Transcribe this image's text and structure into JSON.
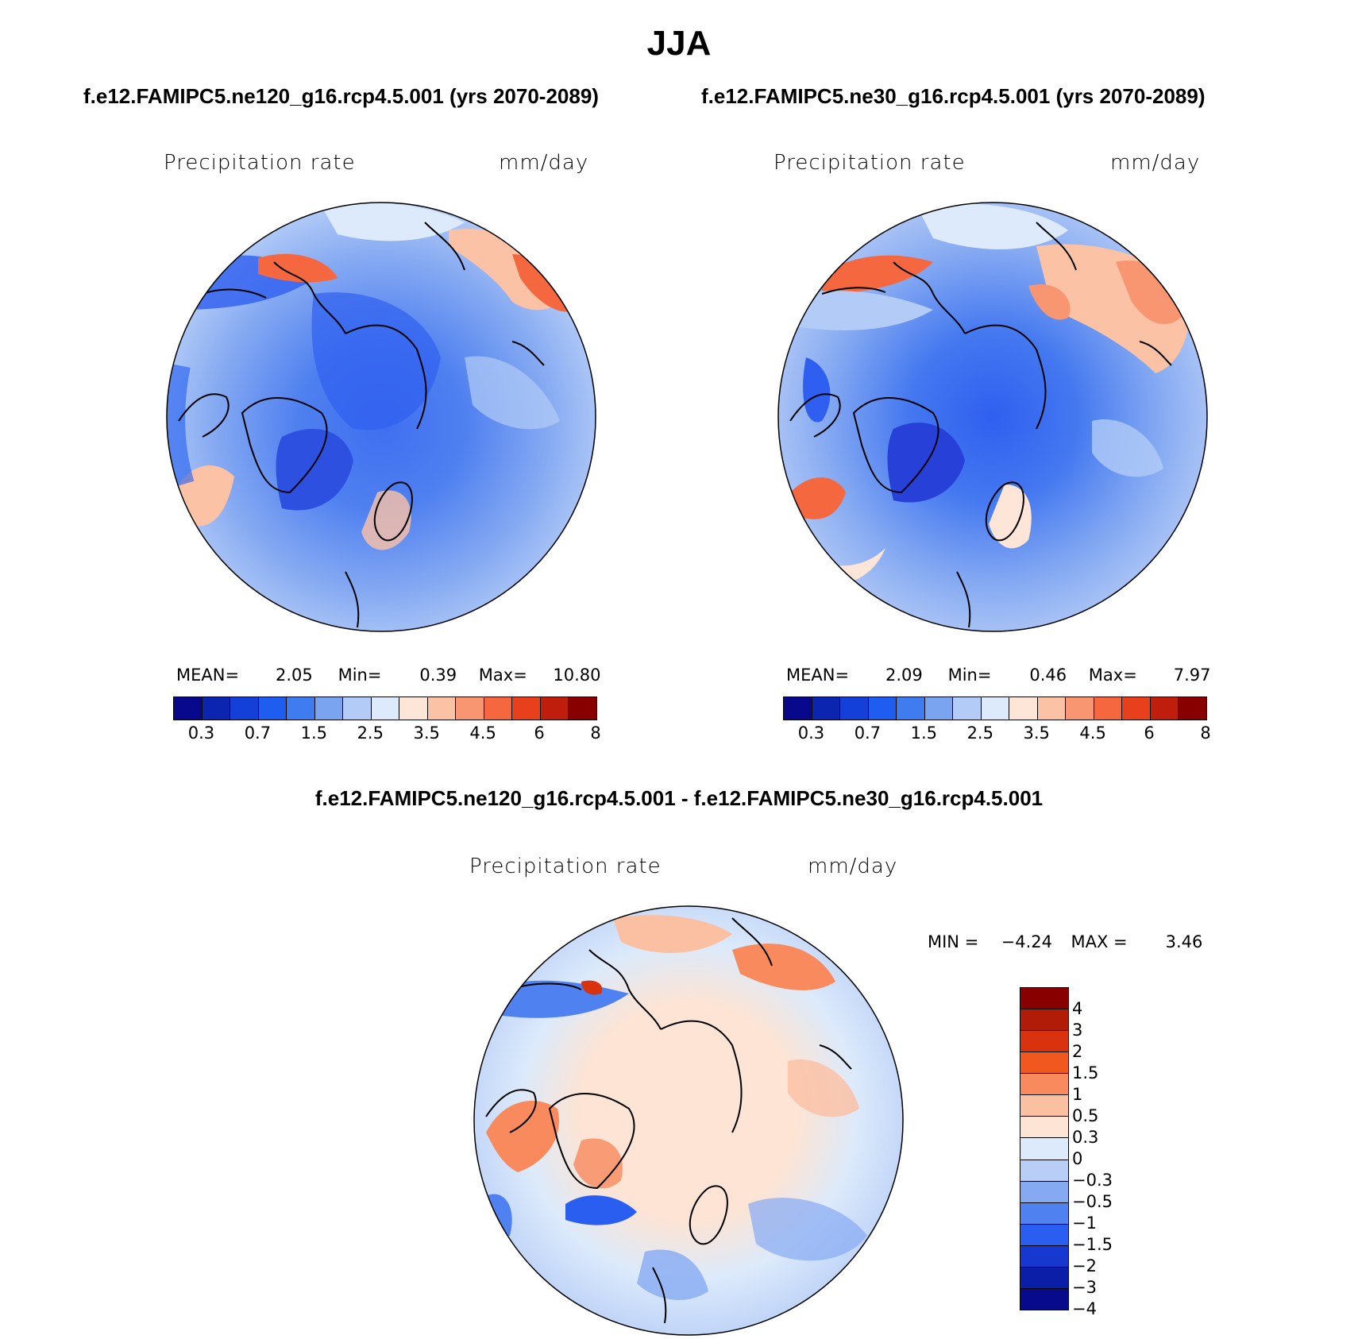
{
  "title": "JJA",
  "panels": [
    {
      "id": "left",
      "case_title": "f.e12.FAMIPC5.ne120_g16.rcp4.5.001 (yrs 2070-2089)",
      "variable": "Precipitation rate",
      "units": "mm/day",
      "stats": {
        "mean_label": "MEAN=",
        "mean": "2.05",
        "min_label": "Min=",
        "min": "0.39",
        "max_label": "Max=",
        "max": "10.80"
      },
      "colorbar_ticks": [
        "0.3",
        "0.7",
        "1.5",
        "2.5",
        "3.5",
        "4.5",
        "6",
        "8"
      ]
    },
    {
      "id": "right",
      "case_title": "f.e12.FAMIPC5.ne30_g16.rcp4.5.001 (yrs 2070-2089)",
      "variable": "Precipitation rate",
      "units": "mm/day",
      "stats": {
        "mean_label": "MEAN=",
        "mean": "2.09",
        "min_label": "Min=",
        "min": "0.46",
        "max_label": "Max=",
        "max": "7.97"
      },
      "colorbar_ticks": [
        "0.3",
        "0.7",
        "1.5",
        "2.5",
        "3.5",
        "4.5",
        "6",
        "8"
      ]
    }
  ],
  "diff_panel": {
    "case_title": "f.e12.FAMIPC5.ne120_g16.rcp4.5.001 - f.e12.FAMIPC5.ne30_g16.rcp4.5.001",
    "variable": "Precipitation rate",
    "units": "mm/day",
    "stats": {
      "min_label": "MIN =",
      "min": "−4.24",
      "max_label": "MAX =",
      "max": "3.46"
    },
    "colorbar_ticks": [
      "4",
      "3",
      "2",
      "1.5",
      "1",
      "0.5",
      "0.3",
      "0",
      "−0.3",
      "−0.5",
      "−1",
      "−1.5",
      "−2",
      "−3",
      "−4"
    ]
  },
  "colors": {
    "precip_scale": [
      "#08088c",
      "#0b25b0",
      "#1240d8",
      "#1f5cf0",
      "#3f7cf0",
      "#7aa3f0",
      "#b2ccf7",
      "#dceafb",
      "#fde6d8",
      "#fbc2a6",
      "#f89672",
      "#f5673e",
      "#e8401c",
      "#c01e0c",
      "#880000"
    ],
    "diff_scale": [
      "#880000",
      "#b01c08",
      "#d8320e",
      "#f05820",
      "#f88a5e",
      "#fbbfa2",
      "#fde4d4",
      "#dceafb",
      "#b8cef7",
      "#86aaf2",
      "#4f82f0",
      "#2a5ef0",
      "#1638d0",
      "#0a1ea8",
      "#070a8a"
    ]
  }
}
